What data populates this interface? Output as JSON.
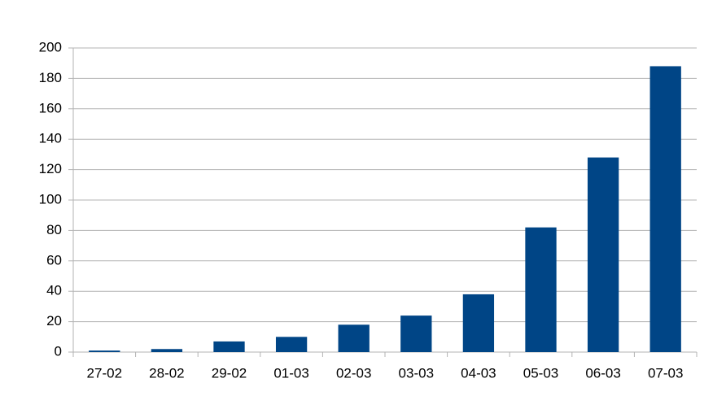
{
  "chart_data": {
    "type": "bar",
    "categories": [
      "27-02",
      "28-02",
      "29-02",
      "01-03",
      "02-03",
      "03-03",
      "04-03",
      "05-03",
      "06-03",
      "07-03"
    ],
    "values": [
      1,
      2,
      7,
      10,
      18,
      24,
      38,
      82,
      128,
      188
    ],
    "color": "#004586",
    "ylim": [
      0,
      200
    ],
    "yticks": [
      0,
      20,
      40,
      60,
      80,
      100,
      120,
      140,
      160,
      180,
      200
    ],
    "grid": true
  }
}
